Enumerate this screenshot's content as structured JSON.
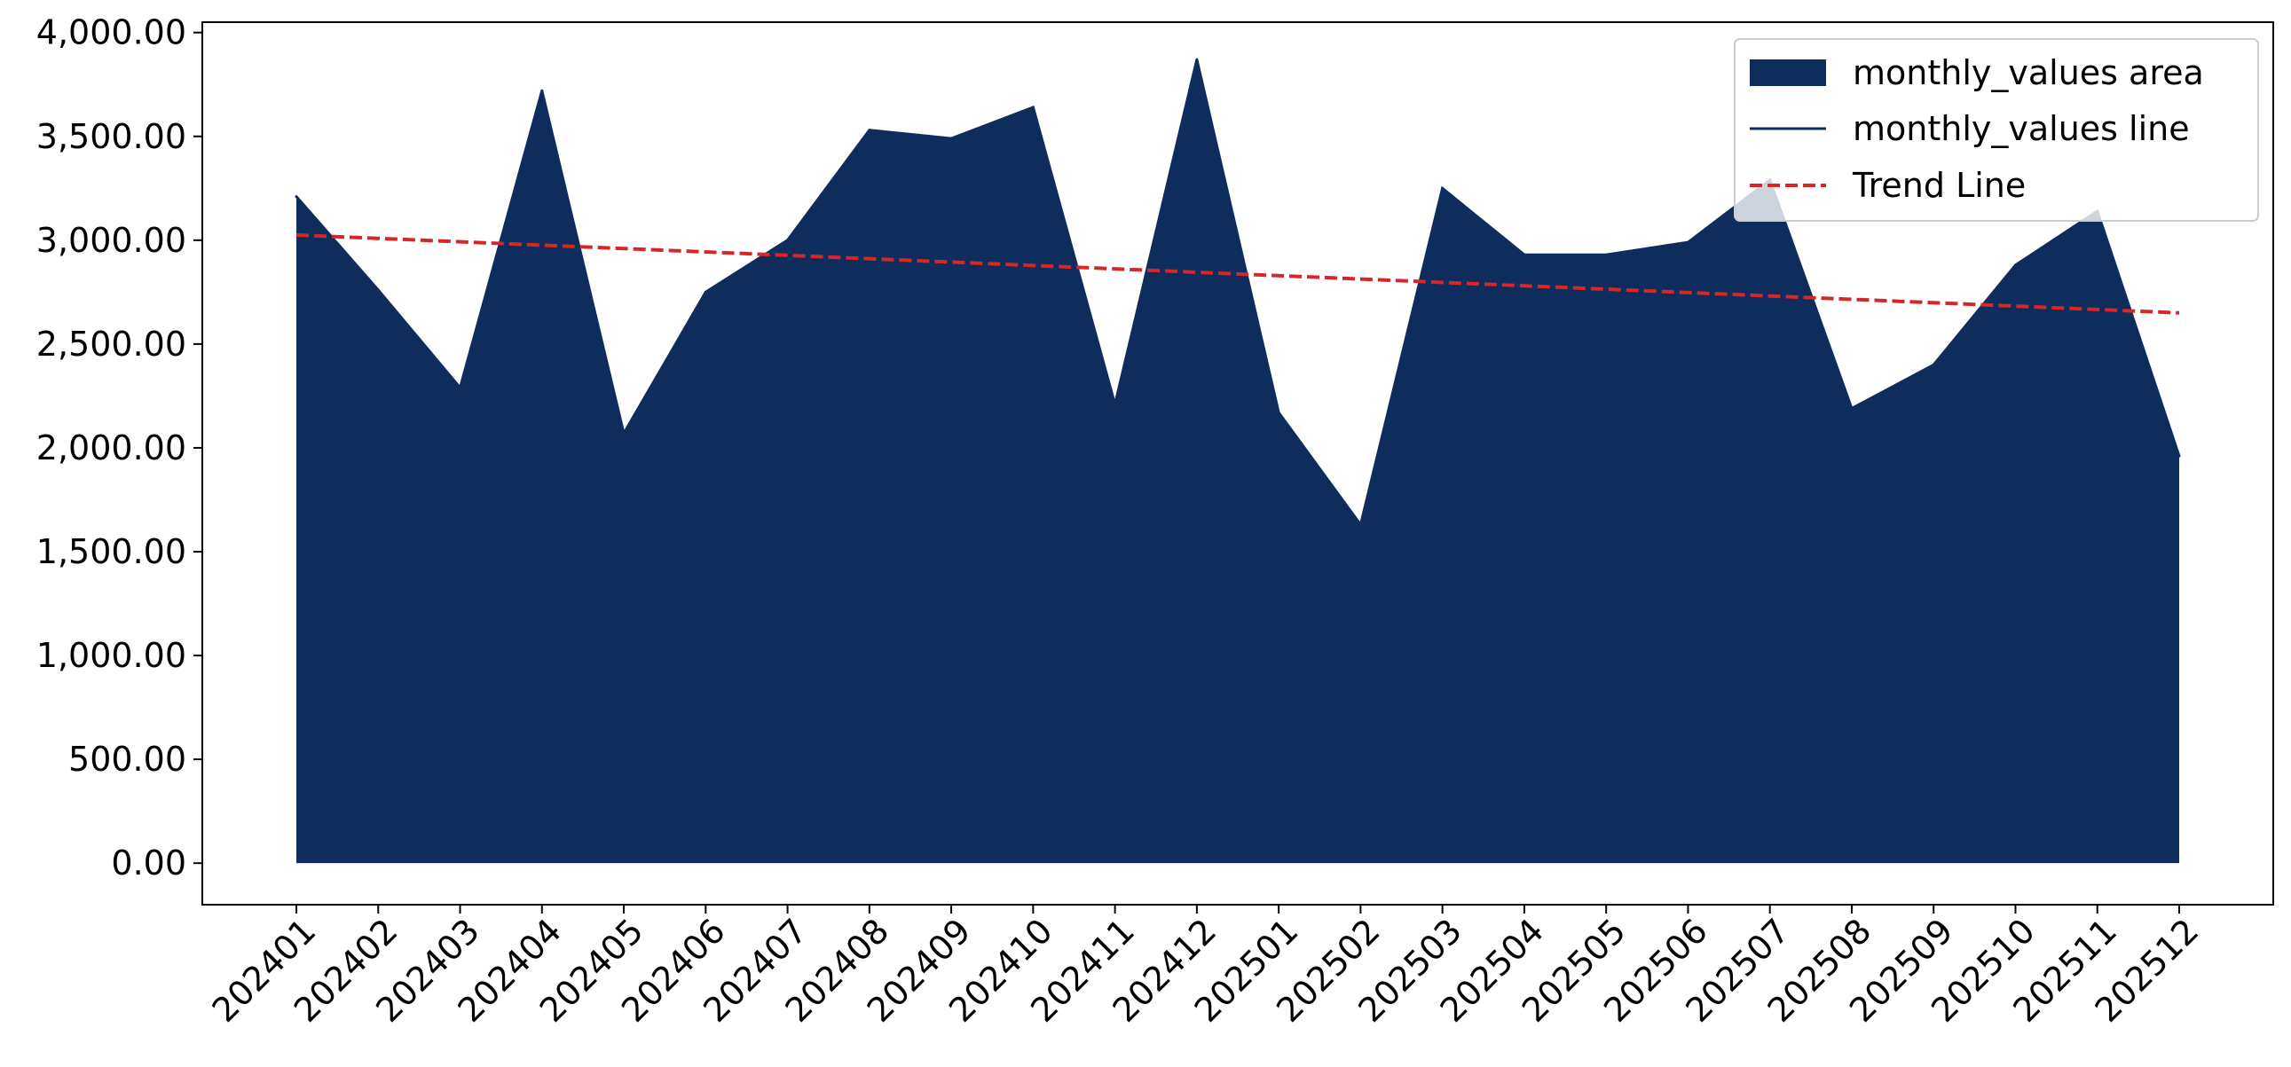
{
  "chart_data": {
    "type": "area",
    "title": "",
    "xlabel": "",
    "ylabel": "",
    "categories": [
      "202401",
      "202402",
      "202403",
      "202404",
      "202405",
      "202406",
      "202407",
      "202408",
      "202409",
      "202410",
      "202411",
      "202412",
      "202501",
      "202502",
      "202503",
      "202504",
      "202505",
      "202506",
      "202507",
      "202508",
      "202509",
      "202510",
      "202511",
      "202512"
    ],
    "series": [
      {
        "name": "monthly_values area",
        "kind": "area",
        "color": "#0e2c5c",
        "values": [
          3210,
          2760,
          2290,
          3720,
          2070,
          2750,
          3000,
          3530,
          3490,
          3640,
          2210,
          3870,
          2170,
          1630,
          3250,
          2930,
          2930,
          2990,
          3290,
          2190,
          2400,
          2880,
          3140,
          1960
        ]
      },
      {
        "name": "monthly_values line",
        "kind": "line",
        "color": "#0e2c5c",
        "values": [
          3210,
          2760,
          2290,
          3720,
          2070,
          2750,
          3000,
          3530,
          3490,
          3640,
          2210,
          3870,
          2170,
          1630,
          3250,
          2930,
          2930,
          2990,
          3290,
          2190,
          2400,
          2880,
          3140,
          1960
        ]
      },
      {
        "name": "Trend Line",
        "kind": "line",
        "style": "dashed",
        "color": "#d62728",
        "start": 3025,
        "end": 2650
      }
    ],
    "ylim": [
      -200,
      4050
    ],
    "yticks": [
      0,
      500,
      1000,
      1500,
      2000,
      2500,
      3000,
      3500,
      4000
    ],
    "ytick_labels": [
      "0.00",
      "500.00",
      "1,000.00",
      "1,500.00",
      "2,000.00",
      "2,500.00",
      "3,000.00",
      "3,500.00",
      "4,000.00"
    ],
    "grid": false,
    "legend_position": "top-right"
  }
}
